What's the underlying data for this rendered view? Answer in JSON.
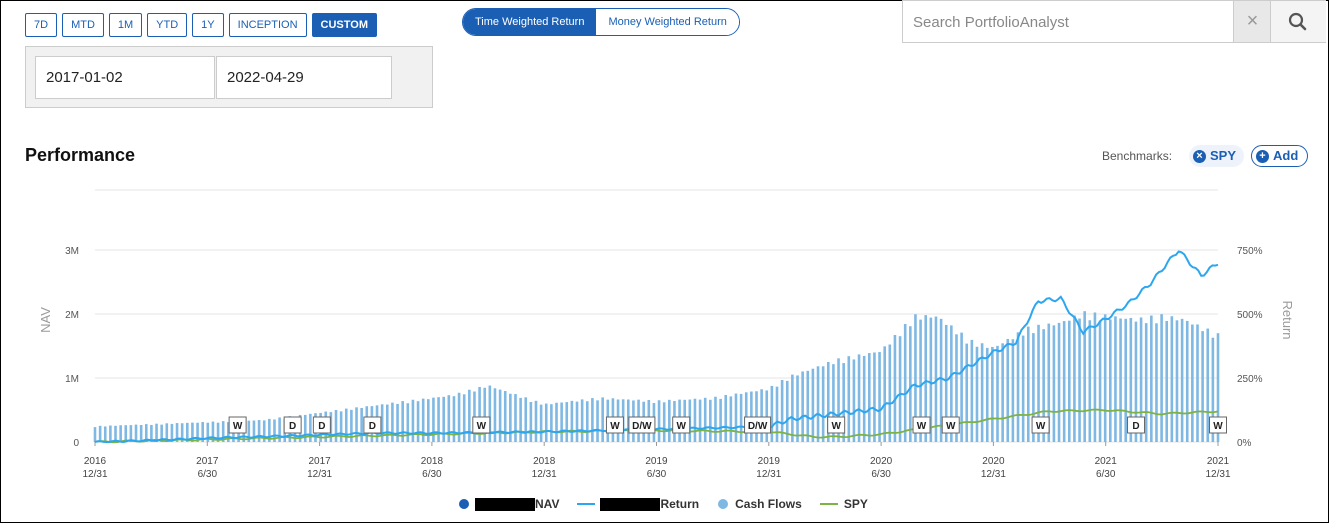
{
  "range_buttons": [
    {
      "label": "7D",
      "active": false
    },
    {
      "label": "MTD",
      "active": false
    },
    {
      "label": "1M",
      "active": false
    },
    {
      "label": "YTD",
      "active": false
    },
    {
      "label": "1Y",
      "active": false
    },
    {
      "label": "INCEPTION",
      "active": false
    },
    {
      "label": "CUSTOM",
      "active": true
    }
  ],
  "date_range": {
    "start": "2017-01-02",
    "end": "2022-04-29"
  },
  "return_toggle": {
    "twr": "Time Weighted Return",
    "mwr": "Money Weighted Return",
    "active": "twr"
  },
  "search": {
    "placeholder": "Search PortfolioAnalyst",
    "clear": "×",
    "icon": "search-icon"
  },
  "performance": {
    "title": "Performance",
    "benchmarks_label": "Benchmarks:",
    "benchmark_chip": "SPY",
    "add_label": "Add"
  },
  "colors": {
    "accent": "#1a5fb4",
    "return_line": "#2ca7ef",
    "cash_flow_bar": "#7fb8e3",
    "spy_line": "#7cb342",
    "nav_dot": "#1a5fb4"
  },
  "chart_data": {
    "type": "line",
    "y_left_label": "NAV",
    "y_right_label": "Return",
    "y_left_ticks": [
      "0",
      "1M",
      "2M",
      "3M"
    ],
    "y_right_ticks": [
      "0%",
      "250%",
      "500%",
      "750%"
    ],
    "y_left_range": [
      0,
      3000000
    ],
    "y_right_range": [
      0,
      750
    ],
    "x_ticks": [
      {
        "label": "2016",
        "sub": "12/31"
      },
      {
        "label": "2017",
        "sub": "6/30"
      },
      {
        "label": "2017",
        "sub": "12/31"
      },
      {
        "label": "2018",
        "sub": "6/30"
      },
      {
        "label": "2018",
        "sub": "12/31"
      },
      {
        "label": "2019",
        "sub": "6/30"
      },
      {
        "label": "2019",
        "sub": "12/31"
      },
      {
        "label": "2020",
        "sub": "6/30"
      },
      {
        "label": "2020",
        "sub": "12/31"
      },
      {
        "label": "2021",
        "sub": "6/30"
      },
      {
        "label": "2021",
        "sub": "12/31"
      }
    ],
    "return_series": {
      "name": "Return",
      "t": [
        0,
        0.04,
        0.1,
        0.18,
        0.25,
        0.3,
        0.4,
        0.5,
        0.6,
        0.62,
        0.66,
        0.7,
        0.73,
        0.76,
        0.8,
        0.82,
        0.84,
        0.86,
        0.88,
        0.9,
        0.92,
        0.94,
        0.955,
        0.965,
        0.985,
        1.0
      ],
      "values": [
        0,
        5,
        15,
        25,
        35,
        35,
        40,
        50,
        60,
        90,
        110,
        130,
        220,
        250,
        350,
        390,
        550,
        560,
        430,
        480,
        540,
        620,
        700,
        750,
        650,
        700
      ]
    },
    "spy_series": {
      "name": "SPY",
      "t": [
        0,
        0.15,
        0.3,
        0.4,
        0.5,
        0.6,
        0.62,
        0.64,
        0.66,
        0.7,
        0.75,
        0.8,
        0.85,
        0.9,
        0.95,
        1.0
      ],
      "values": [
        0,
        15,
        30,
        40,
        45,
        40,
        30,
        20,
        20,
        30,
        60,
        90,
        120,
        125,
        110,
        120
      ]
    },
    "nav_series": {
      "name": "NAV",
      "t": [
        0,
        0.15,
        0.3,
        0.32,
        0.35,
        0.4,
        0.45,
        0.5,
        0.55,
        0.6,
        0.62,
        0.66,
        0.7,
        0.73,
        0.75,
        0.78,
        0.8,
        0.83,
        0.86,
        0.88,
        0.9,
        0.93,
        0.95,
        0.97,
        1.0
      ],
      "values": [
        250000,
        350000,
        700000,
        750000,
        900000,
        600000,
        700000,
        650000,
        700000,
        850000,
        1050000,
        1300000,
        1450000,
        2000000,
        2000000,
        1600000,
        1500000,
        1800000,
        1900000,
        2050000,
        2000000,
        1950000,
        2000000,
        1950000,
        1700000
      ]
    },
    "markers": [
      {
        "label": "W",
        "t": 0.127
      },
      {
        "label": "D",
        "t": 0.176
      },
      {
        "label": "D",
        "t": 0.202
      },
      {
        "label": "D",
        "t": 0.247
      },
      {
        "label": "W",
        "t": 0.344
      },
      {
        "label": "W",
        "t": 0.463
      },
      {
        "label": "D/W",
        "t": 0.487
      },
      {
        "label": "W",
        "t": 0.522
      },
      {
        "label": "D/W",
        "t": 0.59
      },
      {
        "label": "W",
        "t": 0.66
      },
      {
        "label": "W",
        "t": 0.736
      },
      {
        "label": "W",
        "t": 0.762
      },
      {
        "label": "W",
        "t": 0.842
      },
      {
        "label": "D",
        "t": 0.927
      },
      {
        "label": "W",
        "t": 1.0
      }
    ]
  },
  "legend": [
    {
      "label": "NAV",
      "kind": "dot"
    },
    {
      "label": "Return",
      "kind": "line"
    },
    {
      "label": "Cash Flows",
      "kind": "dot-light"
    },
    {
      "label": "SPY",
      "kind": "line-green"
    }
  ]
}
